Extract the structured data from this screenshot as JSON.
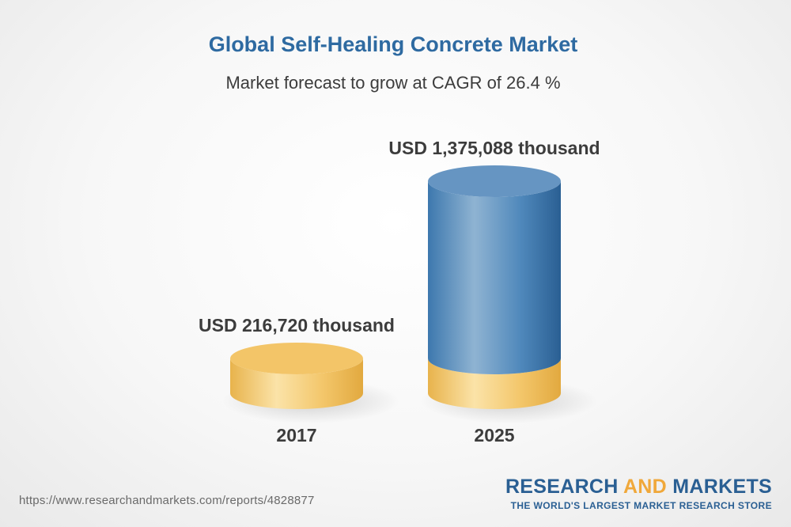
{
  "chart_data": {
    "type": "bar",
    "title": "Global Self-Healing Concrete Market",
    "subtitle": "Market forecast to grow at CAGR of 26.4 %",
    "categories": [
      "2017",
      "2025"
    ],
    "values": [
      216720,
      1375088
    ],
    "value_labels": [
      "USD 216,720 thousand",
      "USD 1,375,088 thousand"
    ],
    "units": "USD thousand",
    "style": "3d-cylinder",
    "colors": {
      "base": "#f3c568",
      "growth": "#3f78ad",
      "title": "#2e6aa1",
      "text": "#3c3c3c"
    }
  },
  "footer": {
    "url": "https://www.researchandmarkets.com/reports/4828877"
  },
  "brand": {
    "part1": "RESEARCH ",
    "part2": "AND",
    "part3": " MARKETS",
    "tagline": "THE WORLD'S LARGEST MARKET RESEARCH STORE"
  }
}
